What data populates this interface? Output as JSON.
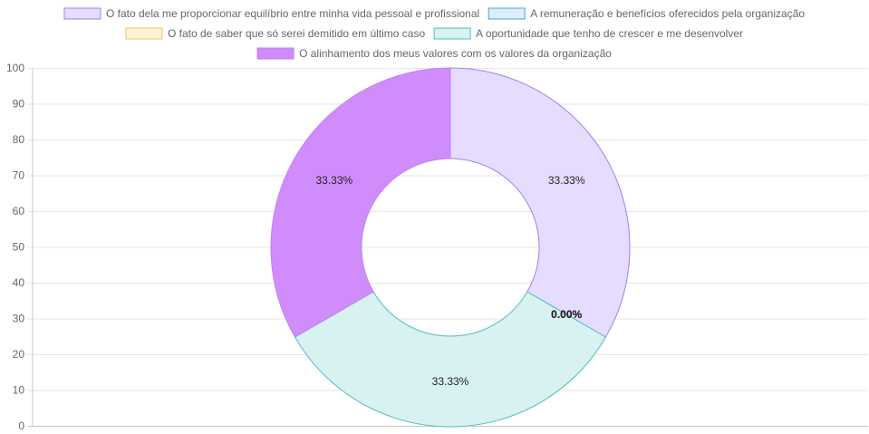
{
  "chart_data": {
    "type": "doughnut",
    "legend_position": "top",
    "grid": true,
    "ylim": [
      0,
      100
    ],
    "y_ticks": [
      "0",
      "10",
      "20",
      "30",
      "40",
      "50",
      "60",
      "70",
      "80",
      "90",
      "100"
    ],
    "slices": [
      {
        "label": "O fato dela me proporcionar equilíbrio entre minha vida pessoal e profissional",
        "value": 1,
        "percent_label": "33.33%",
        "fill": "#e6dcff",
        "stroke": "#a27ff0"
      },
      {
        "label": "A remuneração e benefícios oferecidos pela organização",
        "value": 0,
        "percent_label": "0.00%",
        "fill": "#dbeefa",
        "stroke": "#4fa3d9"
      },
      {
        "label": "O fato de saber que só serei demitido em último caso",
        "value": 0,
        "percent_label": "0.00%",
        "fill": "#fff4d6",
        "stroke": "#f0c36a"
      },
      {
        "label": "A oportunidade que tenho de crescer e me desenvolver",
        "value": 1,
        "percent_label": "33.33%",
        "fill": "#d8f1f1",
        "stroke": "#4fbfbf"
      },
      {
        "label": "O alinhamento dos meus valores com os valores da organização",
        "value": 1,
        "percent_label": "33.33%",
        "fill": "#d18cfb",
        "stroke": "#c07ff0"
      }
    ]
  }
}
